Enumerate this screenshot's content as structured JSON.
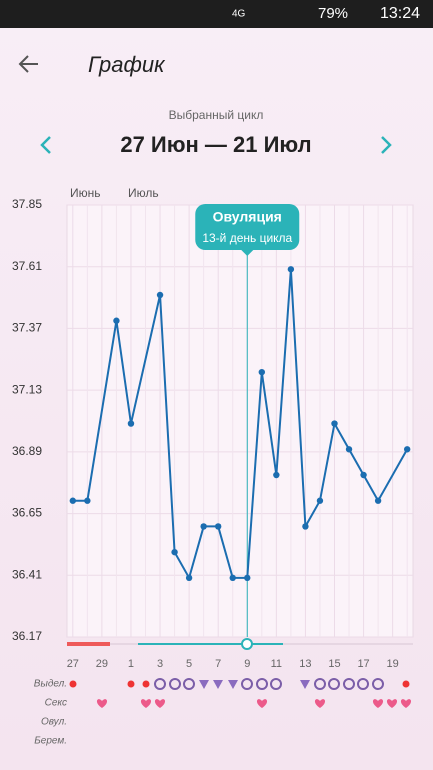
{
  "status_bar": {
    "network": "4G",
    "battery": "79%",
    "time": "13:24"
  },
  "header": {
    "title": "График"
  },
  "cycle": {
    "label": "Выбранный цикл",
    "range": "27 Июн — 21 Июл"
  },
  "chart_data": {
    "type": "line",
    "months": [
      "Июнь",
      "Июль"
    ],
    "annotation": {
      "title": "Овуляция",
      "subtitle": "13-й день цикла",
      "x": 13
    },
    "x": [
      1,
      2,
      4,
      5,
      7,
      8,
      9,
      10,
      11,
      12,
      13,
      14,
      15,
      16,
      17,
      18,
      19,
      20,
      21,
      22,
      24
    ],
    "series": [
      {
        "color": "#1b6db0",
        "values": [
          36.7,
          36.7,
          37.4,
          37.0,
          37.5,
          36.5,
          36.4,
          36.6,
          36.6,
          36.4,
          36.4,
          37.2,
          36.8,
          37.6,
          36.6,
          36.7,
          37.0,
          36.9,
          36.8,
          36.7,
          36.9
        ]
      }
    ],
    "xlim": [
      0.6,
      24.4
    ],
    "xticks": [
      {
        "value": 1,
        "label": "27"
      },
      {
        "value": 3,
        "label": "29"
      },
      {
        "value": 5,
        "label": "1"
      },
      {
        "value": 7,
        "label": "3"
      },
      {
        "value": 9,
        "label": "5"
      },
      {
        "value": 11,
        "label": "7"
      },
      {
        "value": 13,
        "label": "9"
      },
      {
        "value": 15,
        "label": "11"
      },
      {
        "value": 17,
        "label": "13"
      },
      {
        "value": 19,
        "label": "15"
      },
      {
        "value": 21,
        "label": "17"
      },
      {
        "value": 23,
        "label": "19"
      }
    ],
    "ylim": [
      36.17,
      37.85
    ],
    "yticks": [
      36.17,
      36.41,
      36.65,
      36.89,
      37.13,
      37.37,
      37.61,
      37.85
    ],
    "grid": true
  },
  "rows": [
    "Выдел.",
    "Секс",
    "Овул.",
    "Берем."
  ]
}
